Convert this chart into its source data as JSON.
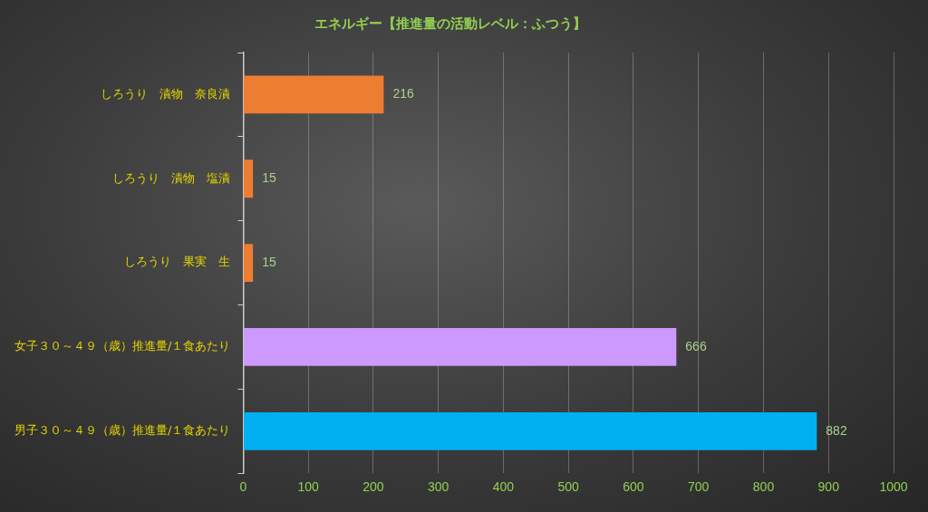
{
  "chart_data": {
    "type": "bar",
    "orientation": "horizontal",
    "title": "エネルギー【推進量の活動レベル：ふつう】",
    "categories": [
      "しろうり　漬物　奈良漬",
      "しろうり　漬物　塩漬",
      "しろうり　果実　生",
      "女子３０～４９（歳）推進量/１食あたり",
      "男子３０～４９（歳）推進量/１食あたり"
    ],
    "values": [
      216,
      15,
      15,
      666,
      882
    ],
    "colors": [
      "#ed7d31",
      "#ed7d31",
      "#ed7d31",
      "#cc99ff",
      "#00b0f0"
    ],
    "xlim": [
      0,
      1000
    ],
    "xticks": [
      0,
      100,
      200,
      300,
      400,
      500,
      600,
      700,
      800,
      900,
      1000
    ],
    "grid": "x",
    "legend": false,
    "data_labels": true
  }
}
